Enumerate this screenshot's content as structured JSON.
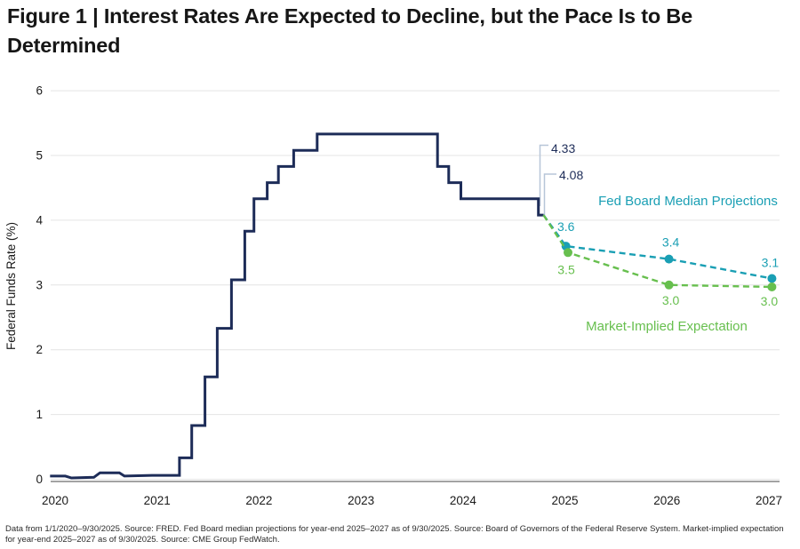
{
  "title": "Figure 1 | Interest Rates Are Expected to Decline, but the Pace Is to Be Determined",
  "footnote": "Data from 1/1/2020–9/30/2025. Source: FRED. Fed Board median projections for year-end 2025–2027 as of 9/30/2025. Source: Board of Governors of the Federal Reserve System. Market-implied expectation for year-end 2025–2027 as of 9/30/2025. Source: CME Group FedWatch.",
  "colors": {
    "navy": "#1d2c58",
    "teal": "#1a9fb4",
    "green": "#67bf4e",
    "leader": "#b7c6d8",
    "grid": "#e4e4e4",
    "axis": "#a3a3a3",
    "text": "#1a1a1a"
  },
  "chart_data": {
    "type": "line",
    "ylabel": "Federal Funds Rate (%)",
    "xlabel": "",
    "x_ticks": [
      2020,
      2021,
      2022,
      2023,
      2024,
      2025,
      2026,
      2027
    ],
    "y_ticks": [
      0,
      1,
      2,
      3,
      4,
      5,
      6
    ],
    "ylim": [
      0,
      6
    ],
    "xlim": [
      2019.9,
      2027.1
    ],
    "grid": true,
    "annotations": [
      {
        "text": "4.33"
      },
      {
        "text": "4.08"
      }
    ],
    "series": [
      {
        "id": "historical",
        "type": "step",
        "color_key": "navy",
        "points": [
          [
            2019.95,
            0.05
          ],
          [
            2020.1,
            0.05
          ],
          [
            2020.16,
            0.02
          ],
          [
            2020.38,
            0.03
          ],
          [
            2020.44,
            0.1
          ],
          [
            2020.63,
            0.1
          ],
          [
            2020.68,
            0.05
          ],
          [
            2020.95,
            0.06
          ],
          [
            2021.22,
            0.06
          ],
          [
            2021.22,
            0.33
          ],
          [
            2021.34,
            0.33
          ],
          [
            2021.34,
            0.83
          ],
          [
            2021.47,
            0.83
          ],
          [
            2021.47,
            1.58
          ],
          [
            2021.59,
            1.58
          ],
          [
            2021.59,
            2.33
          ],
          [
            2021.73,
            2.33
          ],
          [
            2021.73,
            3.08
          ],
          [
            2021.86,
            3.08
          ],
          [
            2021.86,
            3.83
          ],
          [
            2021.95,
            3.83
          ],
          [
            2021.95,
            4.33
          ],
          [
            2022.08,
            4.33
          ],
          [
            2022.08,
            4.58
          ],
          [
            2022.19,
            4.58
          ],
          [
            2022.19,
            4.83
          ],
          [
            2022.34,
            4.83
          ],
          [
            2022.34,
            5.08
          ],
          [
            2022.57,
            5.08
          ],
          [
            2022.57,
            5.33
          ],
          [
            2023.75,
            5.33
          ],
          [
            2023.75,
            4.83
          ],
          [
            2023.86,
            4.83
          ],
          [
            2023.86,
            4.58
          ],
          [
            2023.98,
            4.58
          ],
          [
            2023.98,
            4.33
          ],
          [
            2024.74,
            4.33
          ],
          [
            2024.74,
            4.08
          ],
          [
            2024.79,
            4.08
          ]
        ]
      },
      {
        "id": "fed_projections",
        "label": "Fed Board Median Projections",
        "type": "dashed",
        "color_key": "teal",
        "points": [
          [
            2024.79,
            4.08
          ],
          [
            2025.01,
            3.6
          ],
          [
            2026.02,
            3.4
          ],
          [
            2027.03,
            3.1
          ]
        ],
        "point_labels": [
          "3.6",
          "3.4",
          "3.1"
        ]
      },
      {
        "id": "market_implied",
        "label": "Market-Implied Expectation",
        "type": "dashed",
        "color_key": "green",
        "points": [
          [
            2024.79,
            4.08
          ],
          [
            2025.03,
            3.5
          ],
          [
            2026.02,
            3.0
          ],
          [
            2027.03,
            2.97
          ]
        ],
        "point_labels": [
          "3.5",
          "3.0",
          "3.0"
        ]
      }
    ]
  }
}
